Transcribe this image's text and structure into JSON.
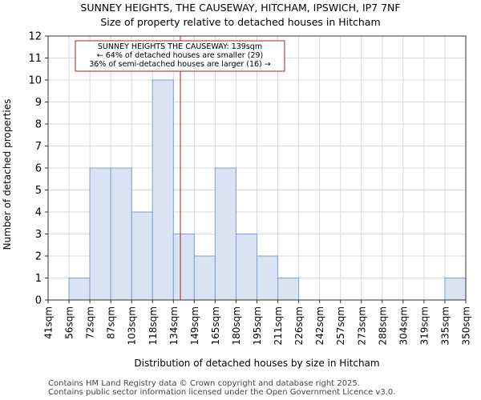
{
  "header": {
    "title_line1": "SUNNEY HEIGHTS, THE CAUSEWAY, HITCHAM, IPSWICH, IP7 7NF",
    "title_line2": "Size of property relative to detached houses in Hitcham"
  },
  "chart_data": {
    "type": "bar",
    "xlabel": "Distribution of detached houses by size in Hitcham",
    "ylabel": "Number of detached properties",
    "ylim": [
      0,
      12
    ],
    "yticks": [
      0,
      1,
      2,
      3,
      4,
      5,
      6,
      7,
      8,
      9,
      10,
      11,
      12
    ],
    "bin_edges": [
      41,
      56,
      72,
      87,
      103,
      118,
      134,
      149,
      165,
      180,
      195,
      211,
      226,
      242,
      257,
      273,
      288,
      304,
      319,
      335,
      350
    ],
    "tick_labels": [
      "41sqm",
      "56sqm",
      "72sqm",
      "87sqm",
      "103sqm",
      "118sqm",
      "134sqm",
      "149sqm",
      "165sqm",
      "180sqm",
      "195sqm",
      "211sqm",
      "226sqm",
      "242sqm",
      "257sqm",
      "273sqm",
      "288sqm",
      "304sqm",
      "319sqm",
      "335sqm",
      "350sqm"
    ],
    "values": [
      0,
      1,
      6,
      6,
      4,
      10,
      3,
      2,
      6,
      3,
      2,
      1,
      0,
      0,
      0,
      0,
      0,
      0,
      0,
      1
    ],
    "bar_color": "#dae3f3",
    "bar_edge_color": "#7f9fd0",
    "grid": true,
    "marker": {
      "value": 139,
      "color": "#b01c1c",
      "annotation": [
        "SUNNEY HEIGHTS THE CAUSEWAY: 139sqm",
        "← 64% of detached houses are smaller (29)",
        "36% of semi-detached houses are larger (16) →"
      ]
    }
  },
  "footer": {
    "line1": "Contains HM Land Registry data © Crown copyright and database right 2025.",
    "line2": "Contains public sector information licensed under the Open Government Licence v3.0."
  }
}
